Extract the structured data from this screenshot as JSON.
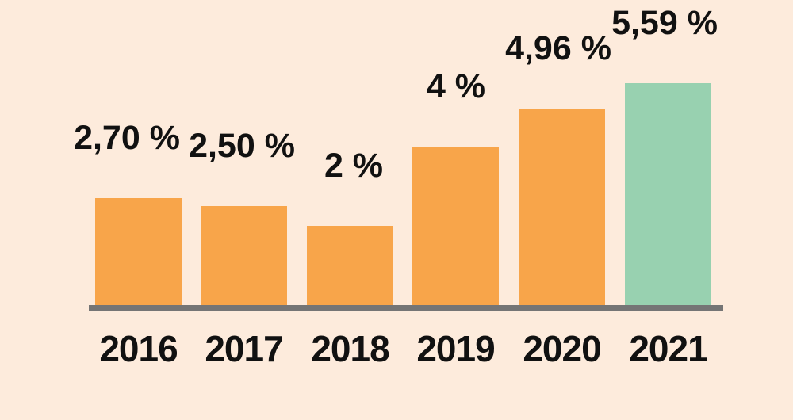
{
  "chart_data": {
    "type": "bar",
    "title": "",
    "xlabel": "",
    "ylabel": "",
    "categories": [
      "2016",
      "2017",
      "2018",
      "2019",
      "2020",
      "2021"
    ],
    "values": [
      2.7,
      2.5,
      2.0,
      4.0,
      4.96,
      5.59
    ],
    "value_labels": [
      "2,70 %",
      "2,50 %",
      "2 %",
      "4 %",
      "4,96 %",
      "5,59 %"
    ],
    "colors": [
      "#f8a54a",
      "#f8a54a",
      "#f8a54a",
      "#f8a54a",
      "#f8a54a",
      "#98d1b0"
    ],
    "grid": false,
    "legend": null
  },
  "style": {
    "background": "#fdebdc",
    "axis_color": "#757575"
  }
}
